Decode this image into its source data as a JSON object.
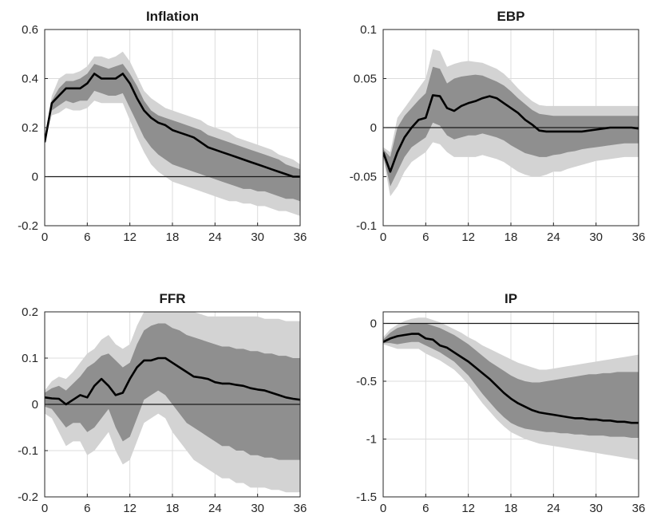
{
  "colors": {
    "outer_band": "#d3d3d3",
    "inner_band": "#8f8f8f",
    "median": "#000000",
    "grid": "#dcdcdc"
  },
  "chart_data": [
    {
      "type": "area",
      "title": "Inflation",
      "xlim": [
        0,
        36
      ],
      "ylim": [
        -0.2,
        0.6
      ],
      "xticks": [
        "0",
        "6",
        "12",
        "18",
        "24",
        "30",
        "36"
      ],
      "yticks": [
        "-0.2",
        "0",
        "0.2",
        "0.4",
        "0.6"
      ],
      "grid": true,
      "zero_line": 0,
      "x": [
        0,
        1,
        2,
        3,
        4,
        5,
        6,
        7,
        8,
        9,
        10,
        11,
        12,
        13,
        14,
        15,
        16,
        17,
        18,
        19,
        20,
        21,
        22,
        23,
        24,
        25,
        26,
        27,
        28,
        29,
        30,
        31,
        32,
        33,
        34,
        35,
        36
      ],
      "series": [
        {
          "role": "outer_band",
          "upper": [
            0.15,
            0.33,
            0.4,
            0.42,
            0.42,
            0.43,
            0.45,
            0.49,
            0.49,
            0.48,
            0.49,
            0.51,
            0.47,
            0.41,
            0.35,
            0.32,
            0.3,
            0.28,
            0.27,
            0.26,
            0.25,
            0.24,
            0.23,
            0.21,
            0.2,
            0.19,
            0.18,
            0.16,
            0.15,
            0.14,
            0.13,
            0.12,
            0.11,
            0.09,
            0.08,
            0.07,
            0.05
          ],
          "lower": [
            0.14,
            0.25,
            0.26,
            0.28,
            0.27,
            0.27,
            0.28,
            0.31,
            0.3,
            0.3,
            0.3,
            0.3,
            0.23,
            0.16,
            0.1,
            0.05,
            0.02,
            0.0,
            -0.02,
            -0.03,
            -0.04,
            -0.05,
            -0.06,
            -0.07,
            -0.08,
            -0.09,
            -0.1,
            -0.1,
            -0.11,
            -0.11,
            -0.12,
            -0.12,
            -0.13,
            -0.14,
            -0.14,
            -0.15,
            -0.16
          ]
        },
        {
          "role": "inner_band",
          "upper": [
            0.14,
            0.31,
            0.36,
            0.39,
            0.39,
            0.4,
            0.42,
            0.46,
            0.45,
            0.44,
            0.45,
            0.46,
            0.42,
            0.37,
            0.31,
            0.27,
            0.25,
            0.24,
            0.23,
            0.22,
            0.21,
            0.2,
            0.19,
            0.17,
            0.16,
            0.15,
            0.14,
            0.13,
            0.12,
            0.11,
            0.1,
            0.09,
            0.08,
            0.07,
            0.05,
            0.04,
            0.03
          ],
          "lower": [
            0.14,
            0.27,
            0.29,
            0.31,
            0.3,
            0.31,
            0.31,
            0.35,
            0.34,
            0.33,
            0.33,
            0.34,
            0.28,
            0.22,
            0.16,
            0.12,
            0.09,
            0.07,
            0.05,
            0.04,
            0.03,
            0.02,
            0.01,
            0.0,
            -0.01,
            -0.02,
            -0.03,
            -0.04,
            -0.05,
            -0.05,
            -0.06,
            -0.06,
            -0.07,
            -0.08,
            -0.09,
            -0.09,
            -0.1
          ]
        },
        {
          "role": "median",
          "values": [
            0.14,
            0.3,
            0.33,
            0.36,
            0.36,
            0.36,
            0.38,
            0.42,
            0.4,
            0.4,
            0.4,
            0.42,
            0.38,
            0.32,
            0.27,
            0.24,
            0.22,
            0.21,
            0.19,
            0.18,
            0.17,
            0.16,
            0.14,
            0.12,
            0.11,
            0.1,
            0.09,
            0.08,
            0.07,
            0.06,
            0.05,
            0.04,
            0.03,
            0.02,
            0.01,
            0.0,
            0.0
          ]
        }
      ]
    },
    {
      "type": "area",
      "title": "EBP",
      "xlim": [
        0,
        36
      ],
      "ylim": [
        -0.1,
        0.1
      ],
      "xticks": [
        "0",
        "6",
        "12",
        "18",
        "24",
        "30",
        "36"
      ],
      "yticks": [
        "-0.1",
        "-0.05",
        "0",
        "0.05",
        "0.1"
      ],
      "grid": true,
      "zero_line": 0,
      "x": [
        0,
        1,
        2,
        3,
        4,
        5,
        6,
        7,
        8,
        9,
        10,
        11,
        12,
        13,
        14,
        15,
        16,
        17,
        18,
        19,
        20,
        21,
        22,
        23,
        24,
        25,
        26,
        27,
        28,
        29,
        30,
        31,
        32,
        33,
        34,
        35,
        36
      ],
      "series": [
        {
          "role": "outer_band",
          "upper": [
            -0.02,
            -0.025,
            0.01,
            0.02,
            0.03,
            0.04,
            0.05,
            0.08,
            0.078,
            0.062,
            0.065,
            0.067,
            0.068,
            0.067,
            0.066,
            0.063,
            0.06,
            0.055,
            0.048,
            0.04,
            0.033,
            0.027,
            0.023,
            0.022,
            0.022,
            0.022,
            0.022,
            0.022,
            0.022,
            0.022,
            0.022,
            0.022,
            0.022,
            0.022,
            0.022,
            0.022,
            0.022
          ],
          "lower": [
            -0.03,
            -0.07,
            -0.06,
            -0.045,
            -0.035,
            -0.03,
            -0.025,
            -0.015,
            -0.017,
            -0.025,
            -0.03,
            -0.03,
            -0.03,
            -0.03,
            -0.028,
            -0.03,
            -0.032,
            -0.035,
            -0.04,
            -0.045,
            -0.048,
            -0.05,
            -0.05,
            -0.048,
            -0.045,
            -0.045,
            -0.042,
            -0.04,
            -0.038,
            -0.036,
            -0.034,
            -0.033,
            -0.032,
            -0.031,
            -0.03,
            -0.03,
            -0.03
          ]
        },
        {
          "role": "inner_band",
          "upper": [
            -0.022,
            -0.03,
            0.0,
            0.012,
            0.02,
            0.028,
            0.035,
            0.062,
            0.06,
            0.045,
            0.05,
            0.052,
            0.053,
            0.054,
            0.053,
            0.05,
            0.047,
            0.043,
            0.037,
            0.03,
            0.024,
            0.018,
            0.014,
            0.013,
            0.012,
            0.012,
            0.012,
            0.012,
            0.012,
            0.012,
            0.012,
            0.012,
            0.012,
            0.012,
            0.012,
            0.012,
            0.012
          ],
          "lower": [
            -0.028,
            -0.06,
            -0.045,
            -0.03,
            -0.02,
            -0.015,
            -0.01,
            0.005,
            0.002,
            -0.008,
            -0.012,
            -0.01,
            -0.008,
            -0.008,
            -0.006,
            -0.008,
            -0.01,
            -0.013,
            -0.018,
            -0.022,
            -0.026,
            -0.028,
            -0.03,
            -0.03,
            -0.028,
            -0.027,
            -0.025,
            -0.024,
            -0.022,
            -0.021,
            -0.02,
            -0.019,
            -0.018,
            -0.017,
            -0.016,
            -0.016,
            -0.016
          ]
        },
        {
          "role": "median",
          "values": [
            -0.025,
            -0.045,
            -0.025,
            -0.01,
            0.0,
            0.008,
            0.01,
            0.033,
            0.032,
            0.02,
            0.017,
            0.022,
            0.025,
            0.027,
            0.03,
            0.032,
            0.03,
            0.025,
            0.02,
            0.015,
            0.008,
            0.003,
            -0.003,
            -0.004,
            -0.004,
            -0.004,
            -0.004,
            -0.004,
            -0.004,
            -0.003,
            -0.002,
            -0.001,
            0.0,
            0.0,
            0.0,
            0.0,
            -0.001
          ]
        }
      ]
    },
    {
      "type": "area",
      "title": "FFR",
      "xlim": [
        0,
        36
      ],
      "ylim": [
        -0.2,
        0.2
      ],
      "xticks": [
        "0",
        "6",
        "12",
        "18",
        "24",
        "30",
        "36"
      ],
      "yticks": [
        "-0.2",
        "-0.1",
        "0",
        "0.1",
        "0.2"
      ],
      "grid": true,
      "zero_line": 0,
      "x": [
        0,
        1,
        2,
        3,
        4,
        5,
        6,
        7,
        8,
        9,
        10,
        11,
        12,
        13,
        14,
        15,
        16,
        17,
        18,
        19,
        20,
        21,
        22,
        23,
        24,
        25,
        26,
        27,
        28,
        29,
        30,
        31,
        32,
        33,
        34,
        35,
        36
      ],
      "series": [
        {
          "role": "outer_band",
          "upper": [
            0.03,
            0.05,
            0.06,
            0.055,
            0.07,
            0.09,
            0.11,
            0.12,
            0.14,
            0.15,
            0.13,
            0.12,
            0.13,
            0.17,
            0.2,
            0.21,
            0.22,
            0.22,
            0.21,
            0.21,
            0.2,
            0.2,
            0.195,
            0.19,
            0.19,
            0.19,
            0.19,
            0.19,
            0.19,
            0.19,
            0.19,
            0.185,
            0.185,
            0.185,
            0.18,
            0.18,
            0.18
          ],
          "lower": [
            -0.02,
            -0.03,
            -0.06,
            -0.09,
            -0.08,
            -0.08,
            -0.11,
            -0.1,
            -0.08,
            -0.06,
            -0.1,
            -0.13,
            -0.12,
            -0.08,
            -0.04,
            -0.03,
            -0.02,
            -0.03,
            -0.06,
            -0.08,
            -0.1,
            -0.12,
            -0.13,
            -0.14,
            -0.15,
            -0.16,
            -0.16,
            -0.17,
            -0.17,
            -0.18,
            -0.18,
            -0.18,
            -0.185,
            -0.185,
            -0.19,
            -0.19,
            -0.19
          ]
        },
        {
          "role": "inner_band",
          "upper": [
            0.025,
            0.035,
            0.04,
            0.03,
            0.045,
            0.06,
            0.08,
            0.09,
            0.105,
            0.11,
            0.095,
            0.08,
            0.09,
            0.13,
            0.16,
            0.17,
            0.175,
            0.175,
            0.165,
            0.16,
            0.15,
            0.145,
            0.14,
            0.135,
            0.13,
            0.125,
            0.125,
            0.12,
            0.12,
            0.115,
            0.115,
            0.11,
            0.11,
            0.105,
            0.105,
            0.1,
            0.1
          ],
          "lower": [
            -0.005,
            -0.01,
            -0.03,
            -0.05,
            -0.04,
            -0.04,
            -0.06,
            -0.05,
            -0.03,
            -0.01,
            -0.05,
            -0.08,
            -0.07,
            -0.03,
            0.01,
            0.02,
            0.03,
            0.02,
            0.0,
            -0.02,
            -0.04,
            -0.05,
            -0.06,
            -0.07,
            -0.08,
            -0.09,
            -0.09,
            -0.1,
            -0.1,
            -0.11,
            -0.11,
            -0.115,
            -0.115,
            -0.12,
            -0.12,
            -0.12,
            -0.12
          ]
        },
        {
          "role": "median",
          "values": [
            0.015,
            0.013,
            0.012,
            0.0,
            0.01,
            0.02,
            0.015,
            0.04,
            0.055,
            0.04,
            0.02,
            0.025,
            0.055,
            0.08,
            0.095,
            0.095,
            0.1,
            0.1,
            0.09,
            0.08,
            0.07,
            0.06,
            0.058,
            0.055,
            0.048,
            0.045,
            0.045,
            0.042,
            0.04,
            0.035,
            0.032,
            0.03,
            0.025,
            0.02,
            0.015,
            0.012,
            0.01
          ]
        }
      ]
    },
    {
      "type": "area",
      "title": "IP",
      "xlim": [
        0,
        36
      ],
      "ylim": [
        -1.5,
        0.1
      ],
      "xticks": [
        "0",
        "6",
        "12",
        "18",
        "24",
        "30",
        "36"
      ],
      "yticks": [
        "-1.5",
        "-1",
        "-0.5",
        "0"
      ],
      "grid": true,
      "zero_line": 0,
      "x": [
        0,
        1,
        2,
        3,
        4,
        5,
        6,
        7,
        8,
        9,
        10,
        11,
        12,
        13,
        14,
        15,
        16,
        17,
        18,
        19,
        20,
        21,
        22,
        23,
        24,
        25,
        26,
        27,
        28,
        29,
        30,
        31,
        32,
        33,
        34,
        35,
        36
      ],
      "series": [
        {
          "role": "outer_band",
          "upper": [
            -0.12,
            -0.05,
            -0.01,
            0.02,
            0.04,
            0.05,
            0.05,
            0.03,
            0.01,
            -0.02,
            -0.05,
            -0.08,
            -0.12,
            -0.15,
            -0.19,
            -0.22,
            -0.25,
            -0.28,
            -0.31,
            -0.34,
            -0.36,
            -0.38,
            -0.4,
            -0.4,
            -0.39,
            -0.38,
            -0.37,
            -0.36,
            -0.35,
            -0.34,
            -0.33,
            -0.32,
            -0.31,
            -0.3,
            -0.29,
            -0.28,
            -0.27
          ],
          "lower": [
            -0.18,
            -0.2,
            -0.22,
            -0.22,
            -0.22,
            -0.22,
            -0.26,
            -0.29,
            -0.32,
            -0.36,
            -0.4,
            -0.46,
            -0.53,
            -0.61,
            -0.69,
            -0.76,
            -0.83,
            -0.89,
            -0.94,
            -0.97,
            -1.0,
            -1.02,
            -1.04,
            -1.05,
            -1.06,
            -1.07,
            -1.08,
            -1.09,
            -1.1,
            -1.11,
            -1.12,
            -1.13,
            -1.14,
            -1.15,
            -1.16,
            -1.17,
            -1.18
          ]
        },
        {
          "role": "inner_band",
          "upper": [
            -0.14,
            -0.08,
            -0.04,
            -0.02,
            0.0,
            0.0,
            0.0,
            -0.02,
            -0.04,
            -0.07,
            -0.1,
            -0.14,
            -0.18,
            -0.23,
            -0.28,
            -0.33,
            -0.37,
            -0.41,
            -0.45,
            -0.48,
            -0.5,
            -0.51,
            -0.51,
            -0.5,
            -0.49,
            -0.48,
            -0.47,
            -0.46,
            -0.45,
            -0.44,
            -0.44,
            -0.43,
            -0.43,
            -0.42,
            -0.42,
            -0.42,
            -0.42
          ],
          "lower": [
            -0.17,
            -0.17,
            -0.18,
            -0.17,
            -0.16,
            -0.16,
            -0.19,
            -0.22,
            -0.25,
            -0.29,
            -0.33,
            -0.39,
            -0.45,
            -0.53,
            -0.61,
            -0.68,
            -0.75,
            -0.81,
            -0.86,
            -0.89,
            -0.91,
            -0.92,
            -0.93,
            -0.94,
            -0.94,
            -0.95,
            -0.95,
            -0.96,
            -0.96,
            -0.97,
            -0.97,
            -0.97,
            -0.98,
            -0.98,
            -0.98,
            -0.99,
            -0.99
          ]
        },
        {
          "role": "median",
          "values": [
            -0.16,
            -0.13,
            -0.11,
            -0.1,
            -0.09,
            -0.09,
            -0.13,
            -0.14,
            -0.19,
            -0.21,
            -0.25,
            -0.29,
            -0.33,
            -0.38,
            -0.43,
            -0.48,
            -0.54,
            -0.6,
            -0.65,
            -0.69,
            -0.72,
            -0.75,
            -0.77,
            -0.78,
            -0.79,
            -0.8,
            -0.81,
            -0.82,
            -0.82,
            -0.83,
            -0.83,
            -0.84,
            -0.84,
            -0.85,
            -0.85,
            -0.86,
            -0.86
          ]
        }
      ]
    }
  ]
}
